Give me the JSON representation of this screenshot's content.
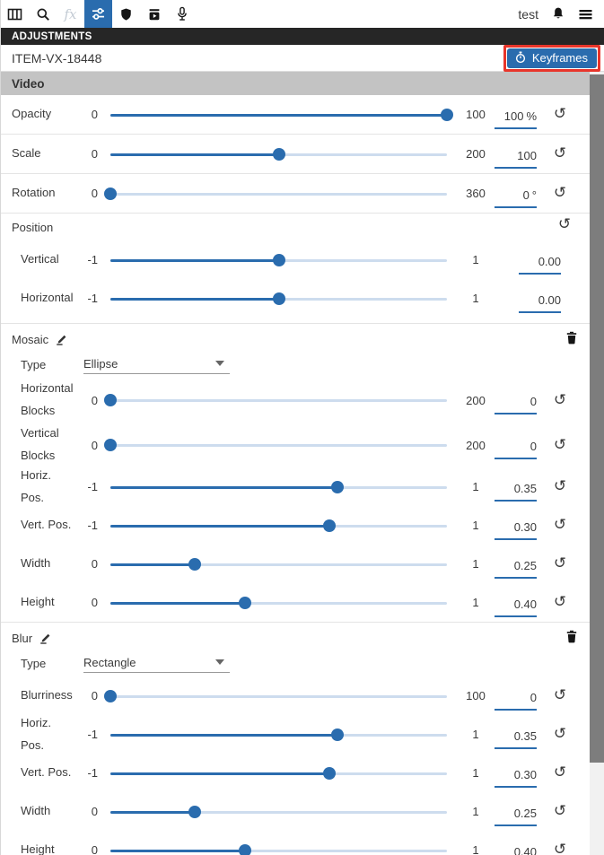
{
  "toolbar": {
    "username": "test",
    "icons": [
      "columns",
      "search",
      "effects",
      "tune",
      "shield",
      "export",
      "microphone",
      "bell",
      "menu"
    ]
  },
  "panel": {
    "header": "ADJUSTMENTS",
    "item_id": "ITEM-VX-18448",
    "keyframes_button": "Keyframes",
    "video_section": "Video"
  },
  "colors": {
    "accent": "#2a6cae",
    "toolbar_active": "#2271b3",
    "slider_track": "#cddcee",
    "highlight_red": "#e8352b",
    "header_bar": "#262626",
    "section_bg": "#c3c3c3",
    "scroll_track": "#f1f1f1",
    "scroll_thumb": "#7d7d7d"
  },
  "sections": [
    {
      "kind": "plain",
      "rows": [
        {
          "type": "slider",
          "label": "Opacity",
          "min": "0",
          "max": "100",
          "value": "100",
          "suffix": "%",
          "reset": true,
          "indent": false
        },
        {
          "type": "slider",
          "label": "Scale",
          "min": "0",
          "max": "200",
          "value": "100",
          "suffix": "",
          "reset": true,
          "indent": false
        },
        {
          "type": "slider",
          "label": "Rotation",
          "min": "0",
          "max": "360",
          "value": "0",
          "suffix": "°",
          "reset": true,
          "indent": false
        }
      ]
    },
    {
      "kind": "group",
      "title": "Position",
      "header_reset": true,
      "rows": [
        {
          "type": "slider",
          "label": "Vertical",
          "min": "-1",
          "max": "1",
          "value": "0.00",
          "suffix": "",
          "reset": false,
          "indent": true
        },
        {
          "type": "slider",
          "label": "Horizontal",
          "min": "-1",
          "max": "1",
          "value": "0.00",
          "suffix": "",
          "reset": false,
          "indent": true
        }
      ]
    },
    {
      "kind": "effect",
      "title": "Mosaic",
      "rows": [
        {
          "type": "dropdown",
          "label": "Type",
          "value": "Ellipse"
        },
        {
          "type": "slider",
          "label": "Horizontal Blocks",
          "min": "0",
          "max": "200",
          "value": "0",
          "suffix": "",
          "reset": true,
          "indent": true,
          "tall": true
        },
        {
          "type": "slider",
          "label": "Vertical Blocks",
          "min": "0",
          "max": "200",
          "value": "0",
          "suffix": "",
          "reset": true,
          "indent": true,
          "tall": true
        },
        {
          "type": "slider",
          "label": "Horiz. Pos.",
          "min": "-1",
          "max": "1",
          "value": "0.35",
          "suffix": "",
          "reset": true,
          "indent": true
        },
        {
          "type": "slider",
          "label": "Vert. Pos.",
          "min": "-1",
          "max": "1",
          "value": "0.30",
          "suffix": "",
          "reset": true,
          "indent": true
        },
        {
          "type": "slider",
          "label": "Width",
          "min": "0",
          "max": "1",
          "value": "0.25",
          "suffix": "",
          "reset": true,
          "indent": true
        },
        {
          "type": "slider",
          "label": "Height",
          "min": "0",
          "max": "1",
          "value": "0.40",
          "suffix": "",
          "reset": true,
          "indent": true
        }
      ]
    },
    {
      "kind": "effect",
      "title": "Blur",
      "rows": [
        {
          "type": "dropdown",
          "label": "Type",
          "value": "Rectangle"
        },
        {
          "type": "slider",
          "label": "Blurriness",
          "min": "0",
          "max": "100",
          "value": "0",
          "suffix": "",
          "reset": true,
          "indent": true
        },
        {
          "type": "slider",
          "label": "Horiz. Pos.",
          "min": "-1",
          "max": "1",
          "value": "0.35",
          "suffix": "",
          "reset": true,
          "indent": true
        },
        {
          "type": "slider",
          "label": "Vert. Pos.",
          "min": "-1",
          "max": "1",
          "value": "0.30",
          "suffix": "",
          "reset": true,
          "indent": true
        },
        {
          "type": "slider",
          "label": "Width",
          "min": "0",
          "max": "1",
          "value": "0.25",
          "suffix": "",
          "reset": true,
          "indent": true
        },
        {
          "type": "slider",
          "label": "Height",
          "min": "0",
          "max": "1",
          "value": "0.40",
          "suffix": "",
          "reset": true,
          "indent": true
        }
      ]
    }
  ]
}
